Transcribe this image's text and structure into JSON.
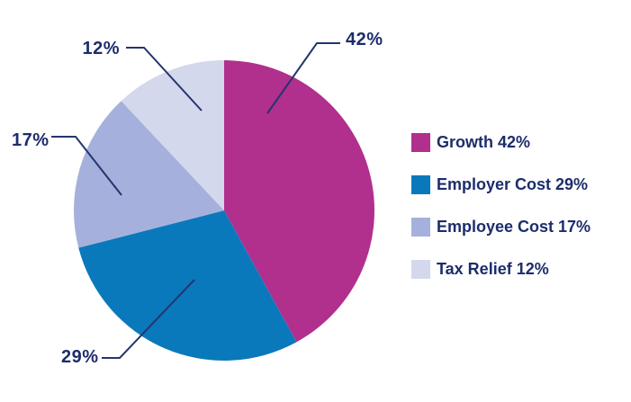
{
  "chart_data": {
    "type": "pie",
    "title": "",
    "categories": [
      "Growth",
      "Employer Cost",
      "Employee Cost",
      "Tax Relief"
    ],
    "values": [
      42,
      29,
      17,
      12
    ],
    "unit": "%",
    "start_angle_deg": 0,
    "direction": "clockwise",
    "legend_position": "right",
    "slices": [
      {
        "label": "Growth",
        "value": 42,
        "pct_label": "42%",
        "legend_label": "Growth 42%",
        "color": "#B12F8D"
      },
      {
        "label": "Employer Cost",
        "value": 29,
        "pct_label": "29%",
        "legend_label": "Employer Cost 29%",
        "color": "#0A79BC"
      },
      {
        "label": "Employee Cost",
        "value": 17,
        "pct_label": "17%",
        "legend_label": "Employee Cost 17%",
        "color": "#A5B1DC"
      },
      {
        "label": "Tax Relief",
        "value": 12,
        "pct_label": "12%",
        "legend_label": "Tax Relief 12%",
        "color": "#D3D8ED"
      }
    ]
  },
  "colors": {
    "label_text": "#1C2D6B",
    "leader_line": "#24356F",
    "background": "#FFFFFF"
  }
}
